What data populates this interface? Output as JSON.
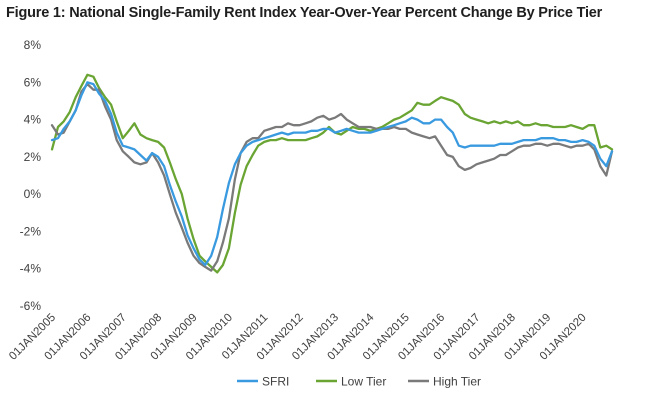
{
  "chart_data": {
    "type": "line",
    "title": "Figure 1: National Single-Family Rent Index Year-Over-Year Percent Change By Price Tier",
    "xlabel": "",
    "ylabel": "",
    "ylim": [
      -6,
      8
    ],
    "yticks": [
      "-6%",
      "-4%",
      "-2%",
      "0%",
      "2%",
      "4%",
      "6%",
      "8%"
    ],
    "grid": false,
    "legend": "bottom",
    "x_tick_labels": [
      "01JAN2005",
      "01JAN2006",
      "01JAN2007",
      "01JAN2008",
      "01JAN2009",
      "01JAN2010",
      "01JAN2011",
      "01JAN2012",
      "01JAN2013",
      "01JAN2014",
      "01JAN2015",
      "01JAN2016",
      "01JAN2017",
      "01JAN2018",
      "01JAN2019",
      "01JAN2020"
    ],
    "x": [
      2005.0,
      2005.17,
      2005.33,
      2005.5,
      2005.67,
      2005.83,
      2006.0,
      2006.17,
      2006.33,
      2006.5,
      2006.67,
      2006.83,
      2007.0,
      2007.17,
      2007.33,
      2007.5,
      2007.67,
      2007.83,
      2008.0,
      2008.17,
      2008.33,
      2008.5,
      2008.67,
      2008.83,
      2009.0,
      2009.17,
      2009.33,
      2009.5,
      2009.67,
      2009.83,
      2010.0,
      2010.17,
      2010.33,
      2010.5,
      2010.67,
      2010.83,
      2011.0,
      2011.17,
      2011.33,
      2011.5,
      2011.67,
      2011.83,
      2012.0,
      2012.17,
      2012.33,
      2012.5,
      2012.67,
      2012.83,
      2013.0,
      2013.17,
      2013.33,
      2013.5,
      2013.67,
      2013.83,
      2014.0,
      2014.17,
      2014.33,
      2014.5,
      2014.67,
      2014.83,
      2015.0,
      2015.17,
      2015.33,
      2015.5,
      2015.67,
      2015.83,
      2016.0,
      2016.17,
      2016.33,
      2016.5,
      2016.67,
      2016.83,
      2017.0,
      2017.17,
      2017.33,
      2017.5,
      2017.67,
      2017.83,
      2018.0,
      2018.17,
      2018.33,
      2018.5,
      2018.67,
      2018.83,
      2019.0,
      2019.17,
      2019.33,
      2019.5,
      2019.67,
      2019.83,
      2020.0,
      2020.17,
      2020.33,
      2020.5,
      2020.67,
      2020.83
    ],
    "series": [
      {
        "name": "SFRI",
        "color": "#3a9ae0",
        "values": [
          2.9,
          3.0,
          3.5,
          3.9,
          4.5,
          5.3,
          6.0,
          5.9,
          5.4,
          5.0,
          4.3,
          3.3,
          2.6,
          2.5,
          2.4,
          2.1,
          1.8,
          2.2,
          2.0,
          1.5,
          0.5,
          -0.4,
          -1.2,
          -2.2,
          -2.9,
          -3.5,
          -3.8,
          -3.3,
          -2.3,
          -0.8,
          0.6,
          1.6,
          2.2,
          2.6,
          2.8,
          2.9,
          3.0,
          3.1,
          3.2,
          3.3,
          3.2,
          3.3,
          3.3,
          3.3,
          3.4,
          3.4,
          3.5,
          3.5,
          3.3,
          3.4,
          3.5,
          3.4,
          3.3,
          3.3,
          3.3,
          3.4,
          3.5,
          3.6,
          3.7,
          3.8,
          3.9,
          4.1,
          4.0,
          3.8,
          3.8,
          4.0,
          4.0,
          3.6,
          3.3,
          2.6,
          2.5,
          2.6,
          2.6,
          2.6,
          2.6,
          2.6,
          2.7,
          2.7,
          2.7,
          2.8,
          2.9,
          2.9,
          2.9,
          3.0,
          3.0,
          3.0,
          2.9,
          2.9,
          2.8,
          2.8,
          2.9,
          2.8,
          2.6,
          1.9,
          1.5,
          2.3
        ]
      },
      {
        "name": "Low Tier",
        "color": "#6aa534",
        "values": [
          2.4,
          3.6,
          3.9,
          4.4,
          5.2,
          5.8,
          6.4,
          6.3,
          5.7,
          5.2,
          4.8,
          3.9,
          3.0,
          3.4,
          3.8,
          3.2,
          3.0,
          2.9,
          2.8,
          2.5,
          1.7,
          0.8,
          0.0,
          -1.3,
          -2.4,
          -3.3,
          -3.6,
          -3.9,
          -4.2,
          -3.8,
          -2.9,
          -1.0,
          0.5,
          1.5,
          2.1,
          2.6,
          2.8,
          2.9,
          2.9,
          3.0,
          2.9,
          2.9,
          2.9,
          2.9,
          3.0,
          3.1,
          3.3,
          3.6,
          3.3,
          3.2,
          3.4,
          3.6,
          3.5,
          3.5,
          3.4,
          3.5,
          3.6,
          3.8,
          4.0,
          4.1,
          4.3,
          4.5,
          4.9,
          4.8,
          4.8,
          5.0,
          5.2,
          5.1,
          5.0,
          4.8,
          4.3,
          4.1,
          4.0,
          3.9,
          3.8,
          3.9,
          3.8,
          3.9,
          3.8,
          3.9,
          3.7,
          3.7,
          3.8,
          3.7,
          3.7,
          3.6,
          3.6,
          3.6,
          3.7,
          3.6,
          3.5,
          3.7,
          3.7,
          2.5,
          2.6,
          2.4
        ]
      },
      {
        "name": "High Tier",
        "color": "#7a7a7a",
        "values": [
          3.7,
          3.2,
          3.3,
          3.9,
          4.5,
          5.5,
          5.9,
          5.6,
          5.6,
          4.7,
          4.0,
          2.9,
          2.3,
          2.0,
          1.7,
          1.6,
          1.7,
          2.2,
          1.7,
          1.0,
          0.0,
          -1.0,
          -1.8,
          -2.6,
          -3.3,
          -3.7,
          -3.9,
          -4.1,
          -3.6,
          -2.6,
          -1.3,
          0.8,
          2.2,
          2.8,
          3.0,
          3.0,
          3.4,
          3.5,
          3.6,
          3.6,
          3.8,
          3.7,
          3.7,
          3.8,
          3.9,
          4.1,
          4.2,
          4.0,
          4.1,
          4.3,
          4.0,
          3.8,
          3.6,
          3.6,
          3.6,
          3.5,
          3.5,
          3.5,
          3.6,
          3.5,
          3.5,
          3.3,
          3.2,
          3.1,
          3.0,
          3.1,
          2.6,
          2.1,
          2.0,
          1.5,
          1.3,
          1.4,
          1.6,
          1.7,
          1.8,
          1.9,
          2.1,
          2.1,
          2.3,
          2.5,
          2.6,
          2.6,
          2.7,
          2.7,
          2.6,
          2.7,
          2.7,
          2.6,
          2.5,
          2.6,
          2.6,
          2.7,
          2.4,
          1.5,
          1.0,
          2.3
        ]
      }
    ]
  }
}
